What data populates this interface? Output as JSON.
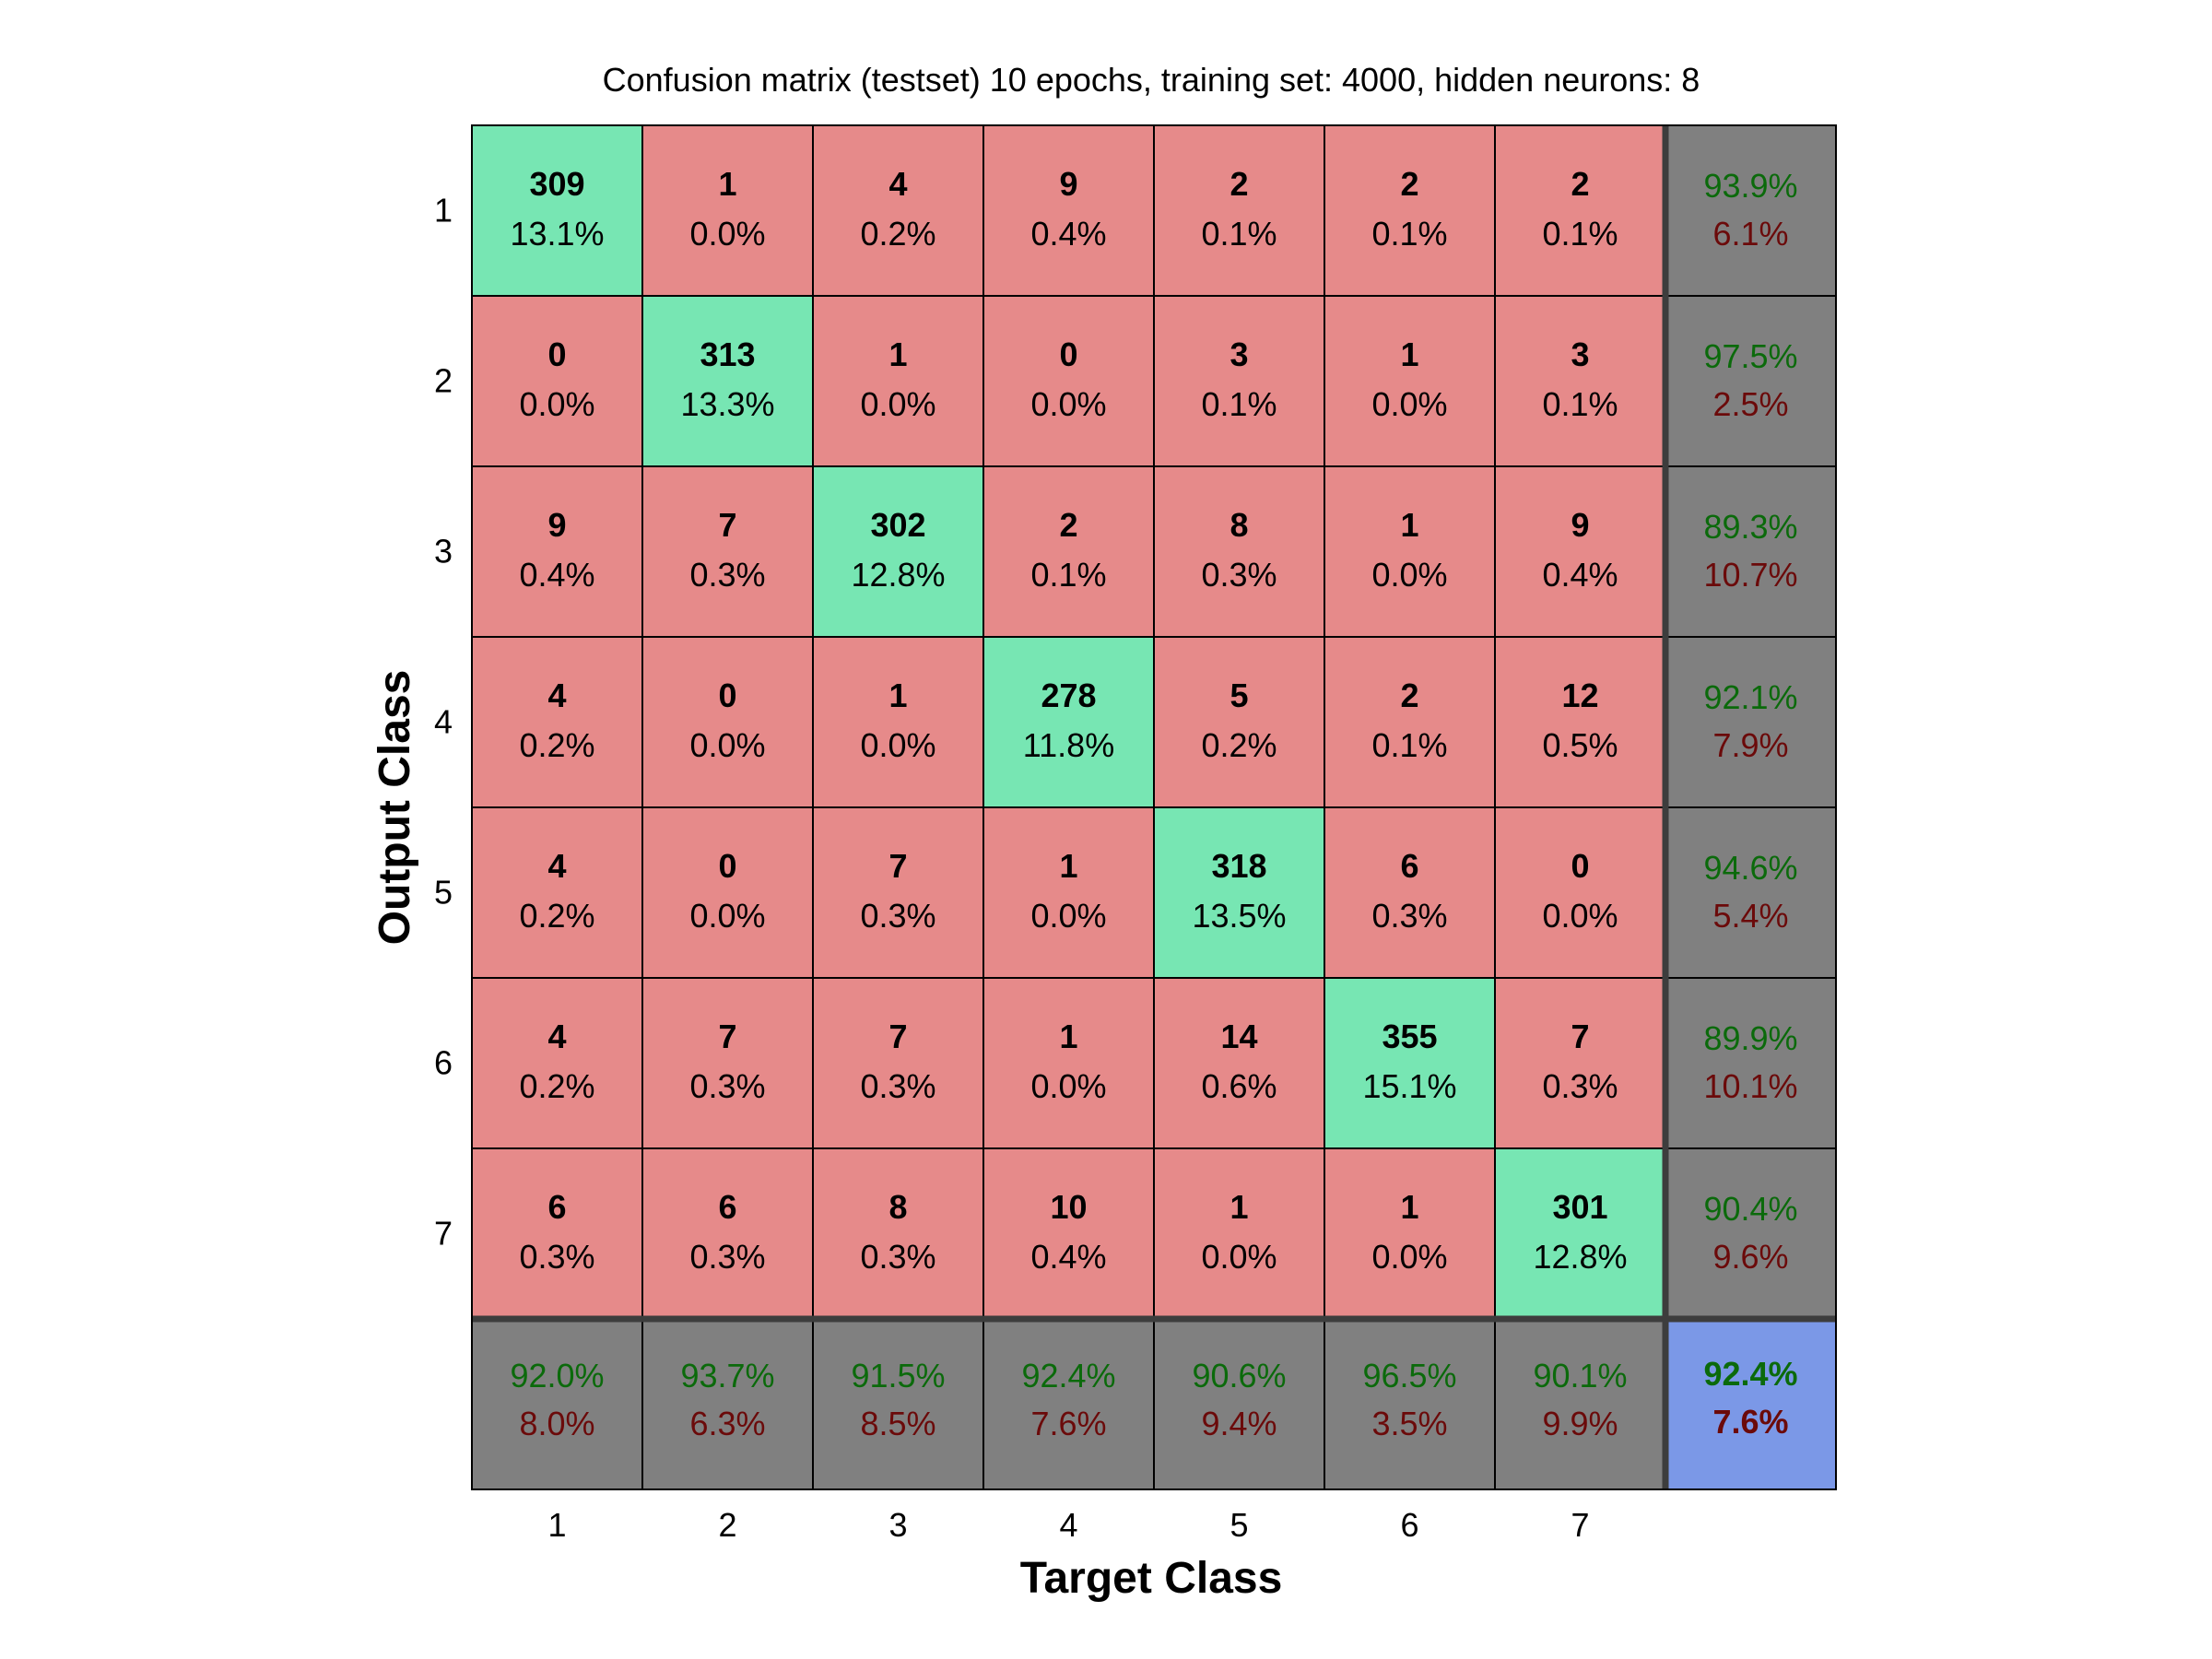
{
  "chart_data": {
    "type": "heatmap",
    "title": "Confusion matrix (testset) 10 epochs, training set: 4000, hidden neurons: 8",
    "xlabel": "Target Class",
    "ylabel": "Output Class",
    "x_tick_labels": [
      "1",
      "2",
      "3",
      "4",
      "5",
      "6",
      "7"
    ],
    "y_tick_labels": [
      "1",
      "2",
      "3",
      "4",
      "5",
      "6",
      "7"
    ],
    "matrix": {
      "counts": [
        [
          309,
          1,
          4,
          9,
          2,
          2,
          2
        ],
        [
          0,
          313,
          1,
          0,
          3,
          1,
          3
        ],
        [
          9,
          7,
          302,
          2,
          8,
          1,
          9
        ],
        [
          4,
          0,
          1,
          278,
          5,
          2,
          12
        ],
        [
          4,
          0,
          7,
          1,
          318,
          6,
          0
        ],
        [
          4,
          7,
          7,
          1,
          14,
          355,
          7
        ],
        [
          6,
          6,
          8,
          10,
          1,
          1,
          301
        ]
      ],
      "percents": [
        [
          "13.1%",
          "0.0%",
          "0.2%",
          "0.4%",
          "0.1%",
          "0.1%",
          "0.1%"
        ],
        [
          "0.0%",
          "13.3%",
          "0.0%",
          "0.0%",
          "0.1%",
          "0.0%",
          "0.1%"
        ],
        [
          "0.4%",
          "0.3%",
          "12.8%",
          "0.1%",
          "0.3%",
          "0.0%",
          "0.4%"
        ],
        [
          "0.2%",
          "0.0%",
          "0.0%",
          "11.8%",
          "0.2%",
          "0.1%",
          "0.5%"
        ],
        [
          "0.2%",
          "0.0%",
          "0.3%",
          "0.0%",
          "13.5%",
          "0.3%",
          "0.0%"
        ],
        [
          "0.2%",
          "0.3%",
          "0.3%",
          "0.0%",
          "0.6%",
          "15.1%",
          "0.3%"
        ],
        [
          "0.3%",
          "0.3%",
          "0.3%",
          "0.4%",
          "0.0%",
          "0.0%",
          "12.8%"
        ]
      ]
    },
    "row_summary": [
      {
        "correct": "93.9%",
        "error": "6.1%"
      },
      {
        "correct": "97.5%",
        "error": "2.5%"
      },
      {
        "correct": "89.3%",
        "error": "10.7%"
      },
      {
        "correct": "92.1%",
        "error": "7.9%"
      },
      {
        "correct": "94.6%",
        "error": "5.4%"
      },
      {
        "correct": "89.9%",
        "error": "10.1%"
      },
      {
        "correct": "90.4%",
        "error": "9.6%"
      }
    ],
    "column_summary": [
      {
        "correct": "92.0%",
        "error": "8.0%"
      },
      {
        "correct": "93.7%",
        "error": "6.3%"
      },
      {
        "correct": "91.5%",
        "error": "8.5%"
      },
      {
        "correct": "92.4%",
        "error": "7.6%"
      },
      {
        "correct": "90.6%",
        "error": "9.4%"
      },
      {
        "correct": "96.5%",
        "error": "3.5%"
      },
      {
        "correct": "90.1%",
        "error": "9.9%"
      }
    ],
    "overall": {
      "correct": "92.4%",
      "error": "7.6%"
    },
    "colors": {
      "diagonal": "#77e6b3",
      "off_diagonal": "#e68a8a",
      "summary": "#808080",
      "overall": "#7b98e7",
      "correct_text": "#0b6a0b",
      "error_text": "#6b0a0a",
      "grid": "#000000",
      "summary_divider": "#3d3d3d"
    }
  }
}
